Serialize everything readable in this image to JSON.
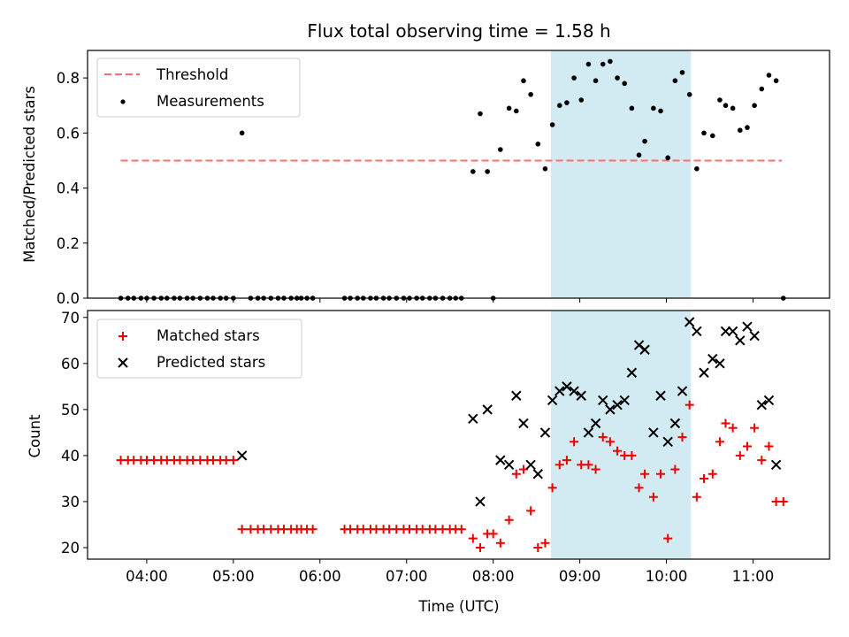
{
  "figure": {
    "title": "Flux total observing time = 1.58 h"
  },
  "colors": {
    "threshold": "#ff6f6f",
    "measurements": "#000000",
    "matched": "#ee0000",
    "predicted": "#000000",
    "highlight": "#add8e6"
  },
  "chart_data": [
    {
      "type": "scatter",
      "title": "Flux total observing time = 1.58 h",
      "xlabel": "",
      "ylabel": "Matched/Predicted stars",
      "xlim": [
        "03:19",
        "11:53"
      ],
      "ylim": [
        0,
        0.9
      ],
      "y_ticks": [
        "0.0",
        "0.2",
        "0.4",
        "0.6",
        "0.8"
      ],
      "x_ticks": [
        "04:00",
        "05:00",
        "06:00",
        "07:00",
        "08:00",
        "09:00",
        "10:00",
        "11:00"
      ],
      "highlight_span": [
        "08:40",
        "10:17"
      ],
      "legend": {
        "position": "upper left",
        "entries": [
          "Threshold",
          "Measurements"
        ]
      },
      "threshold": {
        "name": "Threshold",
        "value": 0.5,
        "x_range": [
          "03:42",
          "11:20"
        ]
      },
      "series": [
        {
          "name": "Measurements",
          "points": [
            [
              "03:42",
              0
            ],
            [
              "03:47",
              0
            ],
            [
              "03:51",
              0
            ],
            [
              "03:56",
              0
            ],
            [
              "04:00",
              0
            ],
            [
              "04:05",
              0
            ],
            [
              "04:10",
              0
            ],
            [
              "04:14",
              0
            ],
            [
              "04:19",
              0
            ],
            [
              "04:23",
              0
            ],
            [
              "04:28",
              0
            ],
            [
              "04:32",
              0
            ],
            [
              "04:37",
              0
            ],
            [
              "04:42",
              0
            ],
            [
              "04:46",
              0
            ],
            [
              "04:51",
              0
            ],
            [
              "04:55",
              0
            ],
            [
              "05:00",
              0
            ],
            [
              "05:06",
              0.6
            ],
            [
              "05:12",
              0
            ],
            [
              "05:17",
              0
            ],
            [
              "05:21",
              0
            ],
            [
              "05:26",
              0
            ],
            [
              "05:31",
              0
            ],
            [
              "05:35",
              0
            ],
            [
              "05:40",
              0
            ],
            [
              "05:44",
              0
            ],
            [
              "05:47",
              0
            ],
            [
              "05:51",
              0
            ],
            [
              "05:55",
              0
            ],
            [
              "06:17",
              0
            ],
            [
              "06:21",
              0
            ],
            [
              "06:26",
              0
            ],
            [
              "06:30",
              0
            ],
            [
              "06:35",
              0
            ],
            [
              "06:39",
              0
            ],
            [
              "06:44",
              0
            ],
            [
              "06:48",
              0
            ],
            [
              "06:53",
              0
            ],
            [
              "06:58",
              0
            ],
            [
              "07:02",
              0
            ],
            [
              "07:07",
              0
            ],
            [
              "07:11",
              0
            ],
            [
              "07:16",
              0
            ],
            [
              "07:20",
              0
            ],
            [
              "07:25",
              0
            ],
            [
              "07:30",
              0
            ],
            [
              "07:34",
              0
            ],
            [
              "07:38",
              0
            ],
            [
              "07:46",
              0.46
            ],
            [
              "07:51",
              0.67
            ],
            [
              "07:56",
              0.46
            ],
            [
              "08:00",
              0
            ],
            [
              "08:05",
              0.54
            ],
            [
              "08:11",
              0.69
            ],
            [
              "08:16",
              0.68
            ],
            [
              "08:21",
              0.79
            ],
            [
              "08:26",
              0.74
            ],
            [
              "08:31",
              0.56
            ],
            [
              "08:36",
              0.47
            ],
            [
              "08:41",
              0.63
            ],
            [
              "08:46",
              0.7
            ],
            [
              "08:51",
              0.71
            ],
            [
              "08:56",
              0.8
            ],
            [
              "09:01",
              0.72
            ],
            [
              "09:06",
              0.85
            ],
            [
              "09:11",
              0.79
            ],
            [
              "09:16",
              0.85
            ],
            [
              "09:21",
              0.86
            ],
            [
              "09:26",
              0.8
            ],
            [
              "09:31",
              0.78
            ],
            [
              "09:36",
              0.69
            ],
            [
              "09:41",
              0.52
            ],
            [
              "09:45",
              0.57
            ],
            [
              "09:51",
              0.69
            ],
            [
              "09:56",
              0.68
            ],
            [
              "10:01",
              0.51
            ],
            [
              "10:06",
              0.79
            ],
            [
              "10:11",
              0.82
            ],
            [
              "10:16",
              0.74
            ],
            [
              "10:21",
              0.47
            ],
            [
              "10:26",
              0.6
            ],
            [
              "10:32",
              0.59
            ],
            [
              "10:37",
              0.72
            ],
            [
              "10:41",
              0.7
            ],
            [
              "10:46",
              0.69
            ],
            [
              "10:51",
              0.61
            ],
            [
              "10:56",
              0.62
            ],
            [
              "11:01",
              0.7
            ],
            [
              "11:06",
              0.76
            ],
            [
              "11:11",
              0.81
            ],
            [
              "11:16",
              0.79
            ],
            [
              "11:21",
              0
            ]
          ]
        }
      ]
    },
    {
      "type": "scatter",
      "title": "",
      "xlabel": "Time (UTC)",
      "ylabel": "Count",
      "xlim": [
        "03:19",
        "11:53"
      ],
      "ylim": [
        17.5,
        71.5
      ],
      "y_ticks": [
        "20",
        "30",
        "40",
        "50",
        "60",
        "70"
      ],
      "x_ticks": [
        "04:00",
        "05:00",
        "06:00",
        "07:00",
        "08:00",
        "09:00",
        "10:00",
        "11:00"
      ],
      "highlight_span": [
        "08:40",
        "10:17"
      ],
      "legend": {
        "position": "upper left",
        "entries": [
          "Matched stars",
          "Predicted stars"
        ]
      },
      "series": [
        {
          "name": "Matched stars",
          "marker": "+",
          "points": [
            [
              "03:42",
              39
            ],
            [
              "03:47",
              39
            ],
            [
              "03:51",
              39
            ],
            [
              "03:56",
              39
            ],
            [
              "04:00",
              39
            ],
            [
              "04:05",
              39
            ],
            [
              "04:10",
              39
            ],
            [
              "04:14",
              39
            ],
            [
              "04:19",
              39
            ],
            [
              "04:23",
              39
            ],
            [
              "04:28",
              39
            ],
            [
              "04:32",
              39
            ],
            [
              "04:37",
              39
            ],
            [
              "04:42",
              39
            ],
            [
              "04:46",
              39
            ],
            [
              "04:51",
              39
            ],
            [
              "04:55",
              39
            ],
            [
              "05:00",
              39
            ],
            [
              "05:06",
              24
            ],
            [
              "05:12",
              24
            ],
            [
              "05:17",
              24
            ],
            [
              "05:21",
              24
            ],
            [
              "05:26",
              24
            ],
            [
              "05:31",
              24
            ],
            [
              "05:35",
              24
            ],
            [
              "05:40",
              24
            ],
            [
              "05:44",
              24
            ],
            [
              "05:47",
              24
            ],
            [
              "05:51",
              24
            ],
            [
              "05:55",
              24
            ],
            [
              "06:17",
              24
            ],
            [
              "06:21",
              24
            ],
            [
              "06:26",
              24
            ],
            [
              "06:30",
              24
            ],
            [
              "06:35",
              24
            ],
            [
              "06:39",
              24
            ],
            [
              "06:44",
              24
            ],
            [
              "06:48",
              24
            ],
            [
              "06:53",
              24
            ],
            [
              "06:58",
              24
            ],
            [
              "07:02",
              24
            ],
            [
              "07:07",
              24
            ],
            [
              "07:11",
              24
            ],
            [
              "07:16",
              24
            ],
            [
              "07:20",
              24
            ],
            [
              "07:25",
              24
            ],
            [
              "07:30",
              24
            ],
            [
              "07:34",
              24
            ],
            [
              "07:38",
              24
            ],
            [
              "07:46",
              22
            ],
            [
              "07:51",
              20
            ],
            [
              "07:56",
              23
            ],
            [
              "08:00",
              23
            ],
            [
              "08:05",
              21
            ],
            [
              "08:11",
              26
            ],
            [
              "08:16",
              36
            ],
            [
              "08:21",
              37
            ],
            [
              "08:26",
              28
            ],
            [
              "08:31",
              20
            ],
            [
              "08:36",
              21
            ],
            [
              "08:41",
              33
            ],
            [
              "08:46",
              38
            ],
            [
              "08:51",
              39
            ],
            [
              "08:56",
              43
            ],
            [
              "09:01",
              38
            ],
            [
              "09:06",
              38
            ],
            [
              "09:11",
              37
            ],
            [
              "09:16",
              44
            ],
            [
              "09:21",
              43
            ],
            [
              "09:26",
              41
            ],
            [
              "09:31",
              40
            ],
            [
              "09:36",
              40
            ],
            [
              "09:41",
              33
            ],
            [
              "09:45",
              36
            ],
            [
              "09:51",
              31
            ],
            [
              "09:56",
              36
            ],
            [
              "10:01",
              22
            ],
            [
              "10:06",
              37
            ],
            [
              "10:11",
              44
            ],
            [
              "10:16",
              51
            ],
            [
              "10:21",
              31
            ],
            [
              "10:26",
              35
            ],
            [
              "10:32",
              36
            ],
            [
              "10:37",
              43
            ],
            [
              "10:41",
              47
            ],
            [
              "10:46",
              46
            ],
            [
              "10:51",
              40
            ],
            [
              "10:56",
              42
            ],
            [
              "11:01",
              46
            ],
            [
              "11:06",
              39
            ],
            [
              "11:11",
              42
            ],
            [
              "11:16",
              30
            ],
            [
              "11:21",
              30
            ]
          ]
        },
        {
          "name": "Predicted stars",
          "marker": "x",
          "points": [
            [
              "05:06",
              40
            ],
            [
              "07:46",
              48
            ],
            [
              "07:51",
              30
            ],
            [
              "07:56",
              50
            ],
            [
              "08:05",
              39
            ],
            [
              "08:11",
              38
            ],
            [
              "08:16",
              53
            ],
            [
              "08:21",
              47
            ],
            [
              "08:26",
              38
            ],
            [
              "08:31",
              36
            ],
            [
              "08:36",
              45
            ],
            [
              "08:41",
              52
            ],
            [
              "08:46",
              54
            ],
            [
              "08:51",
              55
            ],
            [
              "08:56",
              54
            ],
            [
              "09:01",
              53
            ],
            [
              "09:06",
              45
            ],
            [
              "09:11",
              47
            ],
            [
              "09:16",
              52
            ],
            [
              "09:21",
              50
            ],
            [
              "09:26",
              51
            ],
            [
              "09:31",
              52
            ],
            [
              "09:36",
              58
            ],
            [
              "09:41",
              64
            ],
            [
              "09:45",
              63
            ],
            [
              "09:51",
              45
            ],
            [
              "09:56",
              53
            ],
            [
              "10:01",
              43
            ],
            [
              "10:06",
              47
            ],
            [
              "10:11",
              54
            ],
            [
              "10:16",
              69
            ],
            [
              "10:21",
              67
            ],
            [
              "10:26",
              58
            ],
            [
              "10:32",
              61
            ],
            [
              "10:37",
              60
            ],
            [
              "10:41",
              67
            ],
            [
              "10:46",
              67
            ],
            [
              "10:51",
              65
            ],
            [
              "10:56",
              68
            ],
            [
              "11:01",
              66
            ],
            [
              "11:06",
              51
            ],
            [
              "11:11",
              52
            ],
            [
              "11:16",
              38
            ]
          ]
        }
      ]
    }
  ]
}
